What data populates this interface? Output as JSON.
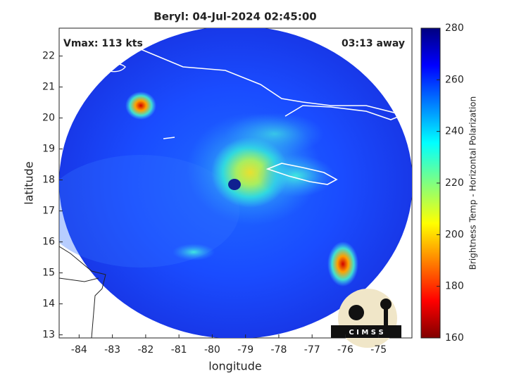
{
  "chart_data": {
    "type": "map",
    "title": "Beryl: 04-Jul-2024 02:45:00",
    "annotations": [
      "Vmax: 113 kts",
      "03:13 away"
    ],
    "xlabel": "longitude",
    "ylabel": "latitude",
    "xlim": [
      -84.6,
      -74.0
    ],
    "ylim": [
      12.9,
      22.9
    ],
    "xticks": [
      -84,
      -83,
      -82,
      -81,
      -80,
      -79,
      -78,
      -77,
      -76,
      -75
    ],
    "yticks": [
      13,
      14,
      15,
      16,
      17,
      18,
      19,
      20,
      21,
      22
    ],
    "colorbar": {
      "label": "Brightness Temp - Horizontal Polarization",
      "lim": [
        160,
        280
      ],
      "ticks": [
        160,
        180,
        200,
        220,
        240,
        260,
        280
      ]
    },
    "logo": "C I M S S"
  }
}
